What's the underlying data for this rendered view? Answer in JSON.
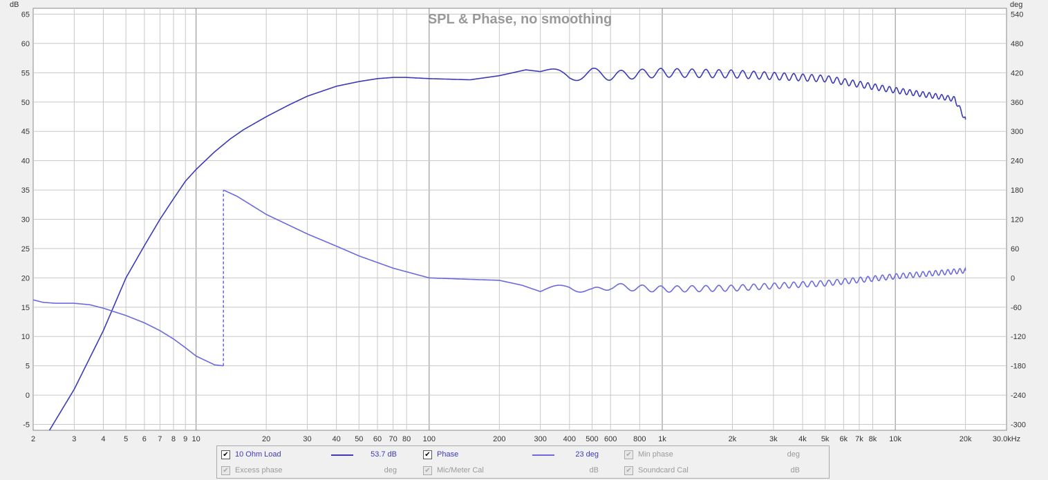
{
  "chart_data": {
    "type": "line",
    "title": "SPL & Phase, no smoothing",
    "x_scale": "log",
    "xlim": [
      2,
      30000
    ],
    "x_ticks": [
      2,
      3,
      4,
      5,
      6,
      7,
      8,
      9,
      10,
      20,
      30,
      40,
      50,
      60,
      70,
      80,
      100,
      200,
      300,
      400,
      500,
      600,
      800,
      1000,
      2000,
      3000,
      4000,
      5000,
      6000,
      7000,
      8000,
      10000,
      20000,
      30000
    ],
    "x_tick_labels": [
      "2",
      "3",
      "4",
      "5",
      "6",
      "7",
      "8",
      "9",
      "10",
      "20",
      "30",
      "40",
      "50",
      "60",
      "70",
      "80",
      "100",
      "200",
      "300",
      "400",
      "500",
      "600",
      "800",
      "1k",
      "2k",
      "3k",
      "4k",
      "5k",
      "6k",
      "7k",
      "8k",
      "10k",
      "20k",
      "30.0kHz"
    ],
    "y_left": {
      "unit": "dB",
      "ylim": [
        -6,
        66
      ],
      "ticks": [
        -5,
        0,
        5,
        10,
        15,
        20,
        25,
        30,
        35,
        40,
        45,
        50,
        55,
        60,
        65
      ]
    },
    "y_right": {
      "unit": "deg",
      "ylim": [
        -312,
        552
      ],
      "ticks": [
        -300,
        -240,
        -180,
        -120,
        -60,
        0,
        60,
        120,
        180,
        240,
        300,
        360,
        420,
        480,
        540
      ]
    },
    "grid": true,
    "series": [
      {
        "name": "10 Ohm Load",
        "axis": "left",
        "color": "#3a3ab8",
        "x": [
          2.35,
          3,
          4,
          5,
          6,
          7,
          8,
          9,
          10,
          12,
          14,
          16,
          20,
          25,
          30,
          40,
          50,
          60,
          70,
          80,
          100,
          150,
          200,
          260,
          300,
          400,
          500,
          600,
          800,
          1000,
          2000,
          5000,
          10000,
          15000,
          18000,
          20000
        ],
        "y": [
          -6,
          1,
          11,
          20,
          25.5,
          30,
          33.5,
          36.5,
          38.5,
          41.5,
          43.7,
          45.3,
          47.5,
          49.5,
          51,
          52.7,
          53.5,
          54,
          54.2,
          54.2,
          54,
          53.8,
          54.5,
          55.5,
          55.2,
          54.3,
          55,
          54.5,
          54.8,
          55,
          54.8,
          54,
          52,
          51,
          50.5,
          47
        ],
        "ripple": [
          {
            "from": 300,
            "to": 20000,
            "start_amp": 0.9,
            "end_amp": 0.4,
            "cycles_per_decade_start": 3,
            "cycles_per_decade_end": 40
          }
        ]
      },
      {
        "name": "Phase",
        "axis": "right",
        "color": "#6a6ae0",
        "x": [
          2,
          2.2,
          2.5,
          3,
          3.5,
          4,
          5,
          6,
          7,
          8,
          9,
          10,
          12,
          13.1,
          13.1,
          15,
          20,
          30,
          40,
          50,
          70,
          100,
          150,
          200,
          250,
          300,
          400,
          500,
          600,
          800,
          1000,
          2000,
          5000,
          10000,
          20000
        ],
        "y": [
          -45,
          -50,
          -52,
          -52,
          -55,
          -62,
          -77,
          -92,
          -108,
          -125,
          -143,
          -160,
          -178,
          -180,
          180,
          167,
          130,
          90,
          65,
          45,
          20,
          0,
          -3,
          -5,
          -15,
          -28,
          -18,
          -28,
          -17,
          -21,
          -23,
          -21,
          -11,
          3,
          15
        ],
        "ripple": [
          {
            "from": 300,
            "to": 20000,
            "start_amp": 7,
            "end_amp": 5,
            "cycles_per_decade_start": 3,
            "cycles_per_decade_end": 40
          }
        ],
        "wrap_at_hz": 13.1
      }
    ]
  },
  "legend": {
    "row1": [
      {
        "label": "10 Ohm Load",
        "checked": true,
        "enabled": true,
        "value": "53.7 dB",
        "line_color": "#3a3ab8"
      },
      {
        "label": "Phase",
        "checked": true,
        "enabled": true,
        "value": "23 deg",
        "line_color": "#6a6ae0"
      },
      {
        "label": "Min phase",
        "checked": true,
        "enabled": false,
        "value": "deg"
      }
    ],
    "row2": [
      {
        "label": "Excess phase",
        "checked": true,
        "enabled": false,
        "value": "deg"
      },
      {
        "label": "Mic/Meter Cal",
        "checked": true,
        "enabled": false,
        "value": "dB"
      },
      {
        "label": "Soundcard Cal",
        "checked": true,
        "enabled": false,
        "value": "dB"
      }
    ]
  }
}
